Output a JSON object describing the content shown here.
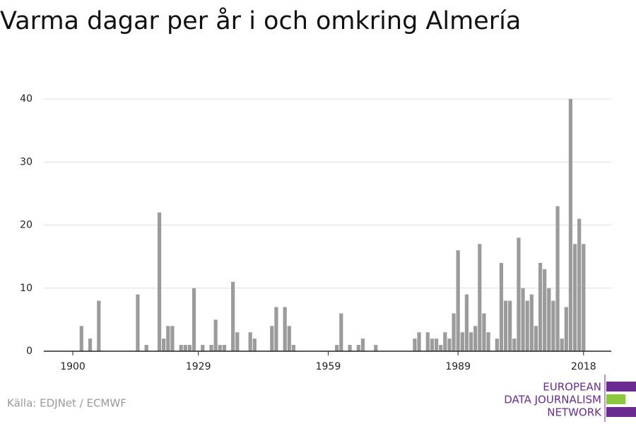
{
  "chart_data": {
    "type": "bar",
    "title": "Varma dagar per år i och omkring Almería",
    "x": [
      1902,
      1904,
      1906,
      1915,
      1917,
      1920,
      1921,
      1922,
      1923,
      1925,
      1926,
      1927,
      1928,
      1930,
      1932,
      1933,
      1934,
      1935,
      1937,
      1938,
      1941,
      1942,
      1946,
      1947,
      1949,
      1950,
      1951,
      1961,
      1962,
      1964,
      1966,
      1967,
      1970,
      1979,
      1980,
      1982,
      1983,
      1984,
      1985,
      1986,
      1987,
      1988,
      1989,
      1990,
      1991,
      1992,
      1993,
      1994,
      1995,
      1996,
      1998,
      1999,
      2000,
      2001,
      2002,
      2003,
      2004,
      2005,
      2006,
      2007,
      2008,
      2009,
      2010,
      2011,
      2012,
      2013,
      2014,
      2015,
      2016,
      2017,
      2018
    ],
    "values": [
      4,
      2,
      8,
      9,
      1,
      22,
      2,
      4,
      4,
      1,
      1,
      1,
      10,
      1,
      1,
      5,
      1,
      1,
      11,
      3,
      3,
      2,
      4,
      7,
      7,
      4,
      1,
      1,
      6,
      1,
      1,
      2,
      1,
      2,
      3,
      3,
      2,
      2,
      1,
      3,
      2,
      6,
      16,
      3,
      9,
      3,
      4,
      17,
      6,
      3,
      2,
      14,
      8,
      8,
      2,
      18,
      10,
      8,
      9,
      4,
      14,
      13,
      10,
      8,
      23,
      2,
      7,
      40,
      17,
      21,
      17
    ],
    "color": "#9b9b9b",
    "xlim": [
      1893.3,
      2024.4
    ],
    "xticks": [
      1900,
      1929,
      1959,
      1989,
      2018
    ],
    "ylim": [
      0,
      40
    ],
    "yticks": [
      0,
      10,
      20,
      30,
      40
    ],
    "grid": true,
    "source": "Källa: EDJNet / ECMWF",
    "logo": [
      "EUROPEAN",
      "DATA JOURNALISM",
      "NETWORK"
    ]
  }
}
